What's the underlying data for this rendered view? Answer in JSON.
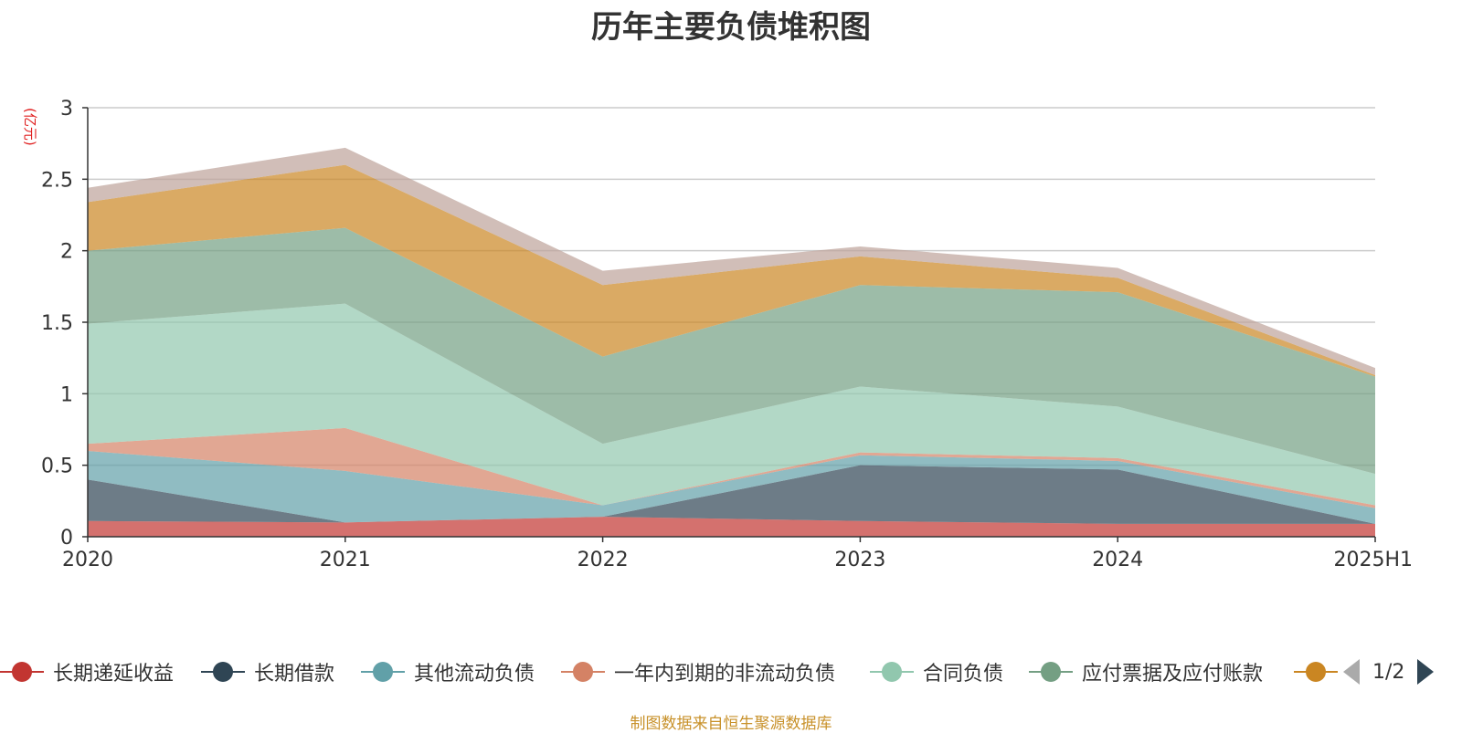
{
  "chart_data": {
    "type": "area",
    "stacked": true,
    "title": "历年主要负债堆积图",
    "unit_label": "(亿元)",
    "categories": [
      "2020",
      "2021",
      "2022",
      "2023",
      "2024",
      "2025H1"
    ],
    "ylim": [
      0,
      3
    ],
    "yticks": [
      0,
      0.5,
      1,
      1.5,
      2,
      2.5,
      3
    ],
    "ytick_labels": [
      "0",
      "0.5",
      "1",
      "1.5",
      "2",
      "2.5",
      "3"
    ],
    "grid": true,
    "legend_position": "bottom",
    "series": [
      {
        "name": "长期递延收益",
        "color": "#c23531",
        "values": [
          0.11,
          0.1,
          0.14,
          0.11,
          0.09,
          0.09
        ]
      },
      {
        "name": "长期借款",
        "color": "#2f4554",
        "values": [
          0.29,
          0.0,
          0.0,
          0.39,
          0.38,
          0.0
        ]
      },
      {
        "name": "其他流动负债",
        "color": "#61a0a8",
        "values": [
          0.2,
          0.36,
          0.08,
          0.07,
          0.06,
          0.11
        ]
      },
      {
        "name": "一年内到期的非流动负债",
        "color": "#d48265",
        "values": [
          0.05,
          0.3,
          0.0,
          0.02,
          0.02,
          0.02
        ]
      },
      {
        "name": "合同负债",
        "color": "#91c7ae",
        "values": [
          0.84,
          0.87,
          0.43,
          0.46,
          0.36,
          0.22
        ]
      },
      {
        "name": "应付票据及应付账款",
        "color": "#749f83",
        "values": [
          0.51,
          0.53,
          0.61,
          0.71,
          0.8,
          0.68
        ]
      },
      {
        "name": "",
        "color": "#ca8622",
        "values": [
          0.34,
          0.44,
          0.5,
          0.2,
          0.1,
          0.01
        ]
      },
      {
        "name": "",
        "color": "#bda29a",
        "values": [
          0.1,
          0.12,
          0.1,
          0.07,
          0.07,
          0.05
        ]
      }
    ]
  },
  "legend": {
    "items": [
      {
        "label": "长期递延收益",
        "color": "#c23531"
      },
      {
        "label": "长期借款",
        "color": "#2f4554"
      },
      {
        "label": "其他流动负债",
        "color": "#61a0a8"
      },
      {
        "label": "一年内到期的非流动负债",
        "color": "#d48265"
      },
      {
        "label": "合同负债",
        "color": "#91c7ae"
      },
      {
        "label": "应付票据及应付账款",
        "color": "#749f83"
      },
      {
        "label": "",
        "color": "#ca8622"
      }
    ],
    "page_indicator": "1/2"
  },
  "source_note": "制图数据来自恒生聚源数据库"
}
